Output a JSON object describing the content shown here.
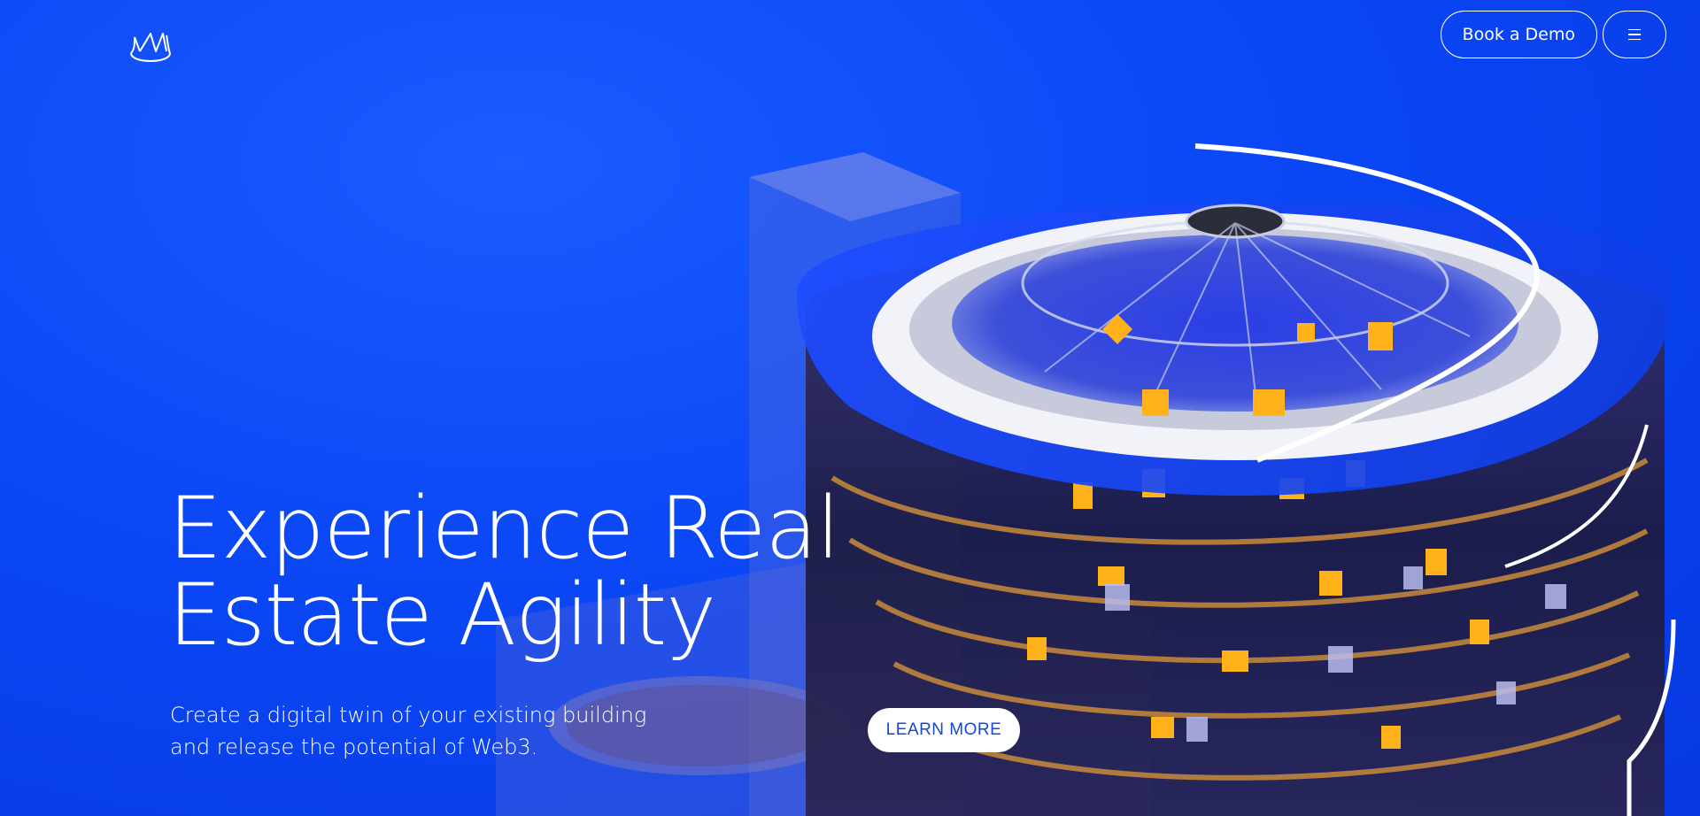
{
  "header": {
    "logo_icon": "crown-m-logo-icon",
    "demo_button_label": "Book a Demo",
    "menu_icon": "hamburger-menu-icon"
  },
  "hero": {
    "headline_line1": "Experience Real",
    "headline_line2": "Estate Agility",
    "subtext_line1": "Create a digital twin of your existing building",
    "subtext_line2": "and release the potential of Web3.",
    "cta_label": "LEARN MORE",
    "image_icon": "3d-building-illustration"
  },
  "colors": {
    "background": "#0b47f5",
    "accent_text": "#1747d6",
    "window_glow": "#ffb21a"
  }
}
